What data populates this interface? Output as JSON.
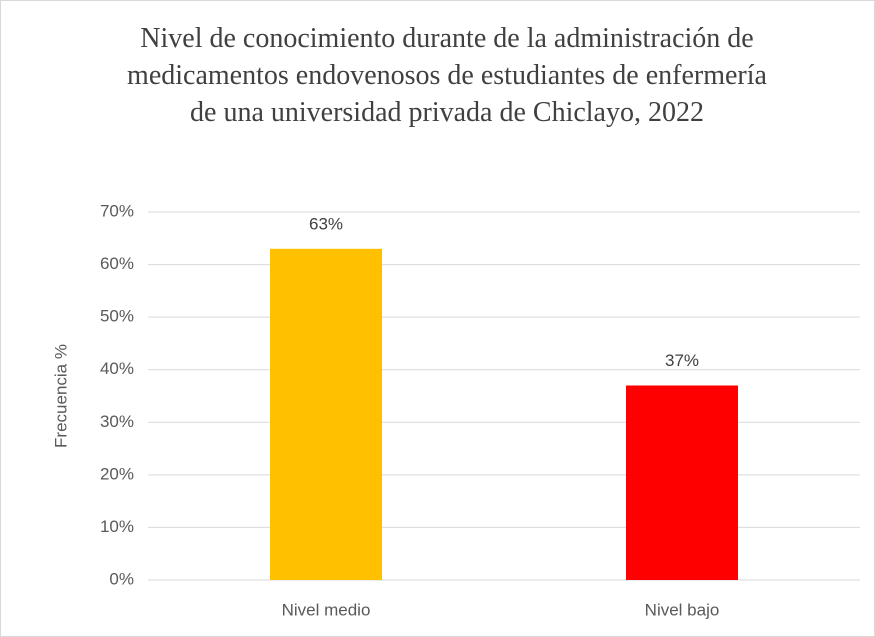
{
  "chart_data": {
    "type": "bar",
    "title": "Nivel de conocimiento durante de la administración de medicamentos endovenosos de estudiantes de enfermería de una universidad privada de Chiclayo, 2022",
    "y_label": "Frecuencia %",
    "categories": [
      "Nivel medio",
      "Nivel bajo"
    ],
    "values": [
      63,
      37
    ],
    "value_labels": [
      "63%",
      "37%"
    ],
    "colors": [
      "#ffc000",
      "#ff0000"
    ],
    "ylim": [
      0,
      70
    ],
    "yticks": [
      {
        "value": 0,
        "label": "0%"
      },
      {
        "value": 10,
        "label": "10%"
      },
      {
        "value": 20,
        "label": "20%"
      },
      {
        "value": 30,
        "label": "30%"
      },
      {
        "value": 40,
        "label": "40%"
      },
      {
        "value": 50,
        "label": "50%"
      },
      {
        "value": 60,
        "label": "60%"
      },
      {
        "value": 70,
        "label": "70%"
      }
    ],
    "grid": true
  }
}
